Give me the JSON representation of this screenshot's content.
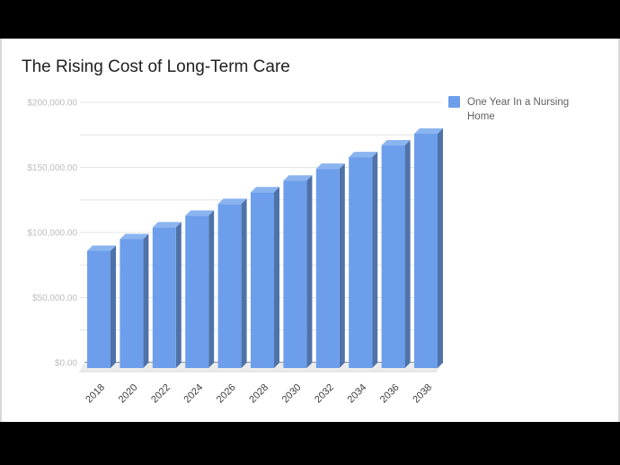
{
  "page": {
    "background_color": "#000000",
    "slide_background_color": "#ffffff"
  },
  "title": "The Rising Cost of Long-Term Care",
  "legend": {
    "label": "One Year In a Nursing Home",
    "swatch_color": "#6d9eeb"
  },
  "chart_data": {
    "type": "bar",
    "style": "3d-column",
    "title": "The Rising Cost of Long-Term Care",
    "categories": [
      "2018",
      "2020",
      "2022",
      "2024",
      "2026",
      "2028",
      "2030",
      "2032",
      "2034",
      "2036",
      "2038"
    ],
    "series": [
      {
        "name": "One Year In a Nursing Home",
        "color": "#6d9eeb",
        "values": [
          90000,
          99000,
          108000,
          117000,
          126000,
          135000,
          144000,
          153000,
          162000,
          171000,
          180000
        ]
      }
    ],
    "xlabel": "",
    "ylabel": "",
    "ylim": [
      0,
      200000
    ],
    "y_tick_step": 50000,
    "y_tick_labels": [
      "$0.00",
      "$50,000.00",
      "$100,000.00",
      "$150,000.00",
      "$200,000.00"
    ],
    "gridline_step": 25000,
    "grid": true,
    "legend_position": "top-right",
    "colors": {
      "bar_front": "#6d9eeb",
      "bar_side": "#4e72a9",
      "bar_top": "#8ab4f0",
      "gridline": "#e4e4e4",
      "axis_line": "#4a4a4a",
      "floor": "#ececec",
      "floor_edge": "#d8d8d8",
      "y_label": "#bdbdbd",
      "x_label": "#3d3d3d"
    }
  }
}
